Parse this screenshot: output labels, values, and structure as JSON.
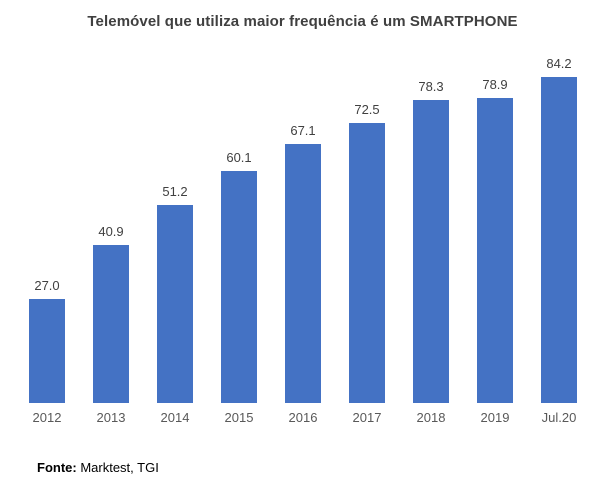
{
  "title": "Telemóvel que utiliza maior frequência é um SMARTPHONE",
  "footer": {
    "label": "Fonte:",
    "text": " Marktest, TGI"
  },
  "colors": {
    "bar": "#4472C4",
    "title_text": "#404040",
    "data_label_text": "#404040",
    "axis_label_text": "#595959",
    "footer_text": "#000000",
    "background": "#ffffff"
  },
  "chart_data": {
    "type": "bar",
    "title": "Telemóvel que utiliza maior frequência é um SMARTPHONE",
    "categories": [
      "2012",
      "2013",
      "2014",
      "2015",
      "2016",
      "2017",
      "2018",
      "2019",
      "Jul.20"
    ],
    "values": [
      27.0,
      40.9,
      51.2,
      60.1,
      67.1,
      72.5,
      78.3,
      78.9,
      84.2
    ],
    "data_labels": [
      "27.0",
      "40.9",
      "51.2",
      "60.1",
      "67.1",
      "72.5",
      "78.3",
      "78.9",
      "84.2"
    ],
    "xlabel": "",
    "ylabel": "",
    "ylim": [
      0,
      90
    ],
    "grid": false,
    "legend": "none",
    "bar_color": "#4472C4",
    "source": "Fonte: Marktest, TGI"
  }
}
